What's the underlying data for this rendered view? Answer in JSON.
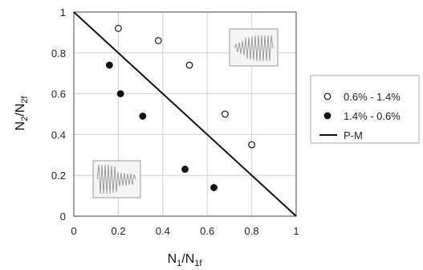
{
  "chart_data": {
    "type": "scatter",
    "xlabel": "N1/N1f",
    "ylabel": "N2/N2f",
    "xlim": [
      0,
      1
    ],
    "ylim": [
      0,
      1
    ],
    "xticks": [
      "0",
      "0.2",
      "0.4",
      "0.6",
      "0.8",
      "1"
    ],
    "yticks": [
      "0",
      "0.2",
      "0.4",
      "0.6",
      "0.8",
      "1"
    ],
    "grid": true,
    "legend_position": "right",
    "series": [
      {
        "name": "0.6% - 1.4%",
        "marker": "open-circle",
        "x": [
          0.2,
          0.38,
          0.52,
          0.68,
          0.8
        ],
        "y": [
          0.92,
          0.86,
          0.74,
          0.5,
          0.35
        ]
      },
      {
        "name": "1.4% - 0.6%",
        "marker": "filled-circle",
        "x": [
          0.16,
          0.21,
          0.31,
          0.5,
          0.63
        ],
        "y": [
          0.74,
          0.6,
          0.49,
          0.23,
          0.14
        ]
      },
      {
        "name": "P-M",
        "marker": "line",
        "x": [
          0,
          1
        ],
        "y": [
          1,
          0
        ]
      }
    ]
  }
}
